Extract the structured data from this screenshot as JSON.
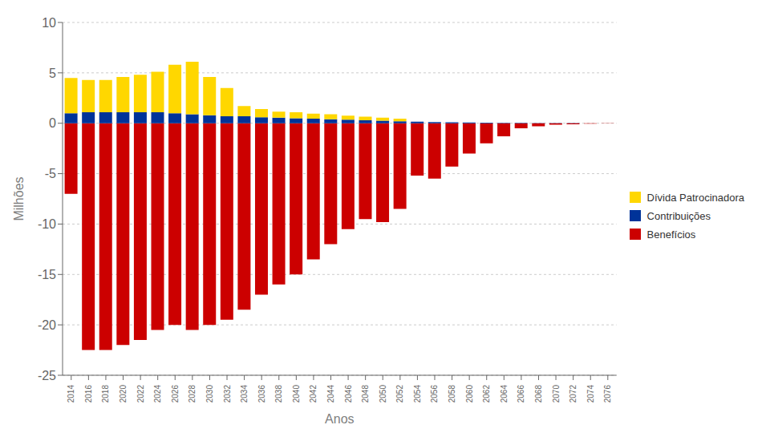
{
  "chart_data": {
    "type": "bar",
    "xlabel": "Anos",
    "ylabel": "Milhões",
    "categories": [
      "2014",
      "2016",
      "2018",
      "2020",
      "2022",
      "2024",
      "2026",
      "2028",
      "2030",
      "2032",
      "2034",
      "2036",
      "2038",
      "2040",
      "2042",
      "2044",
      "2046",
      "2048",
      "2050",
      "2052",
      "2054",
      "2056",
      "2058",
      "2060",
      "2062",
      "2064",
      "2066",
      "2068",
      "2070",
      "2072",
      "2074",
      "2076"
    ],
    "series": [
      {
        "name": "Benefícios",
        "color": "#CC0000",
        "values": [
          -7.0,
          -22.5,
          -22.5,
          -22.0,
          -21.5,
          -20.5,
          -20.0,
          -20.5,
          -20.0,
          -19.5,
          -18.5,
          -17.0,
          -16.0,
          -15.0,
          -13.5,
          -12.0,
          -10.5,
          -9.5,
          -9.8,
          -8.5,
          -5.2,
          -5.5,
          -4.3,
          -3.0,
          -2.0,
          -1.3,
          -0.5,
          -0.3,
          -0.15,
          -0.1,
          -0.05,
          -0.02
        ]
      },
      {
        "name": "Contribuições",
        "color": "#003399",
        "values": [
          1.0,
          1.1,
          1.1,
          1.1,
          1.1,
          1.1,
          1.0,
          0.9,
          0.8,
          0.7,
          0.7,
          0.6,
          0.55,
          0.5,
          0.45,
          0.4,
          0.35,
          0.3,
          0.25,
          0.2,
          0.15,
          0.12,
          0.1,
          0.07,
          0.05,
          0.04,
          0.03,
          0.02,
          0.01,
          0.01,
          0.005,
          0.002
        ]
      },
      {
        "name": "Dívida Patrocinadora",
        "color": "#FFD700",
        "values": [
          3.5,
          3.2,
          3.2,
          3.5,
          3.7,
          4.0,
          4.8,
          5.2,
          3.8,
          2.8,
          1.0,
          0.8,
          0.6,
          0.6,
          0.5,
          0.5,
          0.4,
          0.35,
          0.3,
          0.25,
          0.0,
          0.0,
          0.0,
          0.0,
          0.0,
          0.0,
          0.0,
          0.0,
          0.0,
          0.0,
          0.0,
          0.0
        ]
      }
    ],
    "ylim": [
      -25,
      10
    ],
    "yticks": [
      -25,
      -20,
      -15,
      -10,
      -5,
      0,
      5,
      10
    ],
    "grid": true,
    "legend": "right",
    "stacked": true
  }
}
